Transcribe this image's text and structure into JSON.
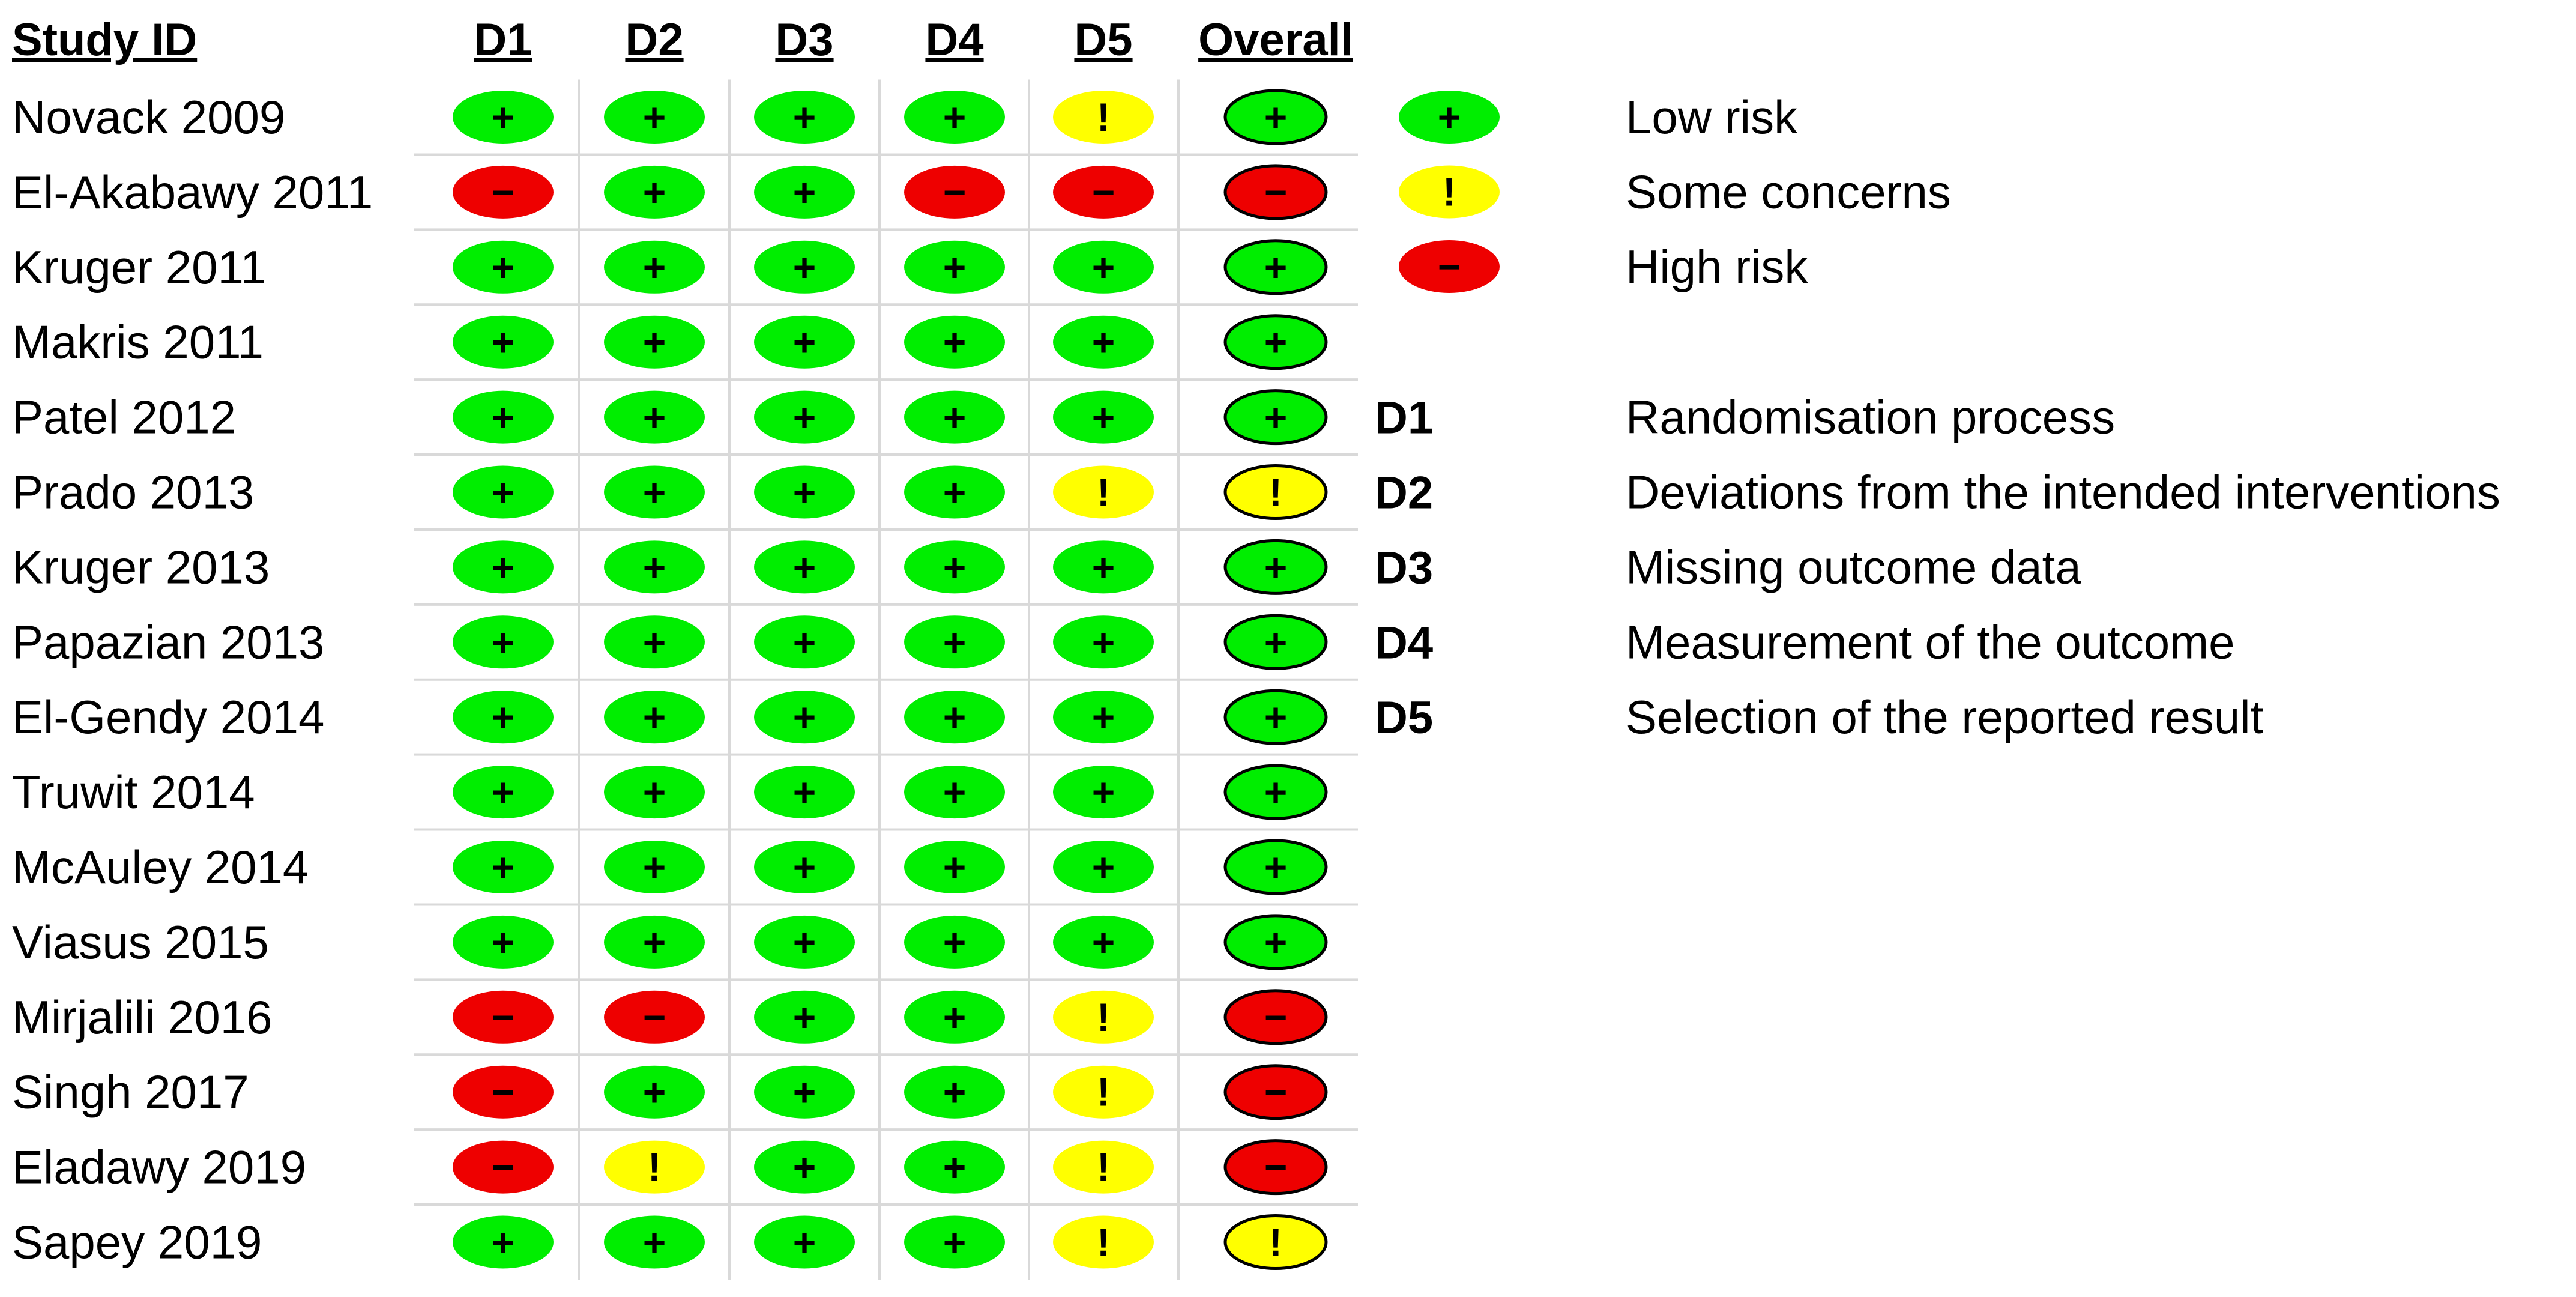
{
  "chart_data": {
    "type": "table",
    "columns": [
      "Study ID",
      "D1",
      "D2",
      "D3",
      "D4",
      "D5",
      "Overall"
    ],
    "rows": [
      {
        "study": "Novack 2009",
        "ratings": [
          "low",
          "low",
          "low",
          "low",
          "some",
          "low"
        ]
      },
      {
        "study": "El-Akabawy 2011",
        "ratings": [
          "high",
          "low",
          "low",
          "high",
          "high",
          "high"
        ]
      },
      {
        "study": "Kruger 2011",
        "ratings": [
          "low",
          "low",
          "low",
          "low",
          "low",
          "low"
        ]
      },
      {
        "study": "Makris 2011",
        "ratings": [
          "low",
          "low",
          "low",
          "low",
          "low",
          "low"
        ]
      },
      {
        "study": "Patel 2012",
        "ratings": [
          "low",
          "low",
          "low",
          "low",
          "low",
          "low"
        ]
      },
      {
        "study": "Prado 2013",
        "ratings": [
          "low",
          "low",
          "low",
          "low",
          "some",
          "some"
        ]
      },
      {
        "study": "Kruger 2013",
        "ratings": [
          "low",
          "low",
          "low",
          "low",
          "low",
          "low"
        ]
      },
      {
        "study": "Papazian 2013",
        "ratings": [
          "low",
          "low",
          "low",
          "low",
          "low",
          "low"
        ]
      },
      {
        "study": "El-Gendy 2014",
        "ratings": [
          "low",
          "low",
          "low",
          "low",
          "low",
          "low"
        ]
      },
      {
        "study": "Truwit 2014",
        "ratings": [
          "low",
          "low",
          "low",
          "low",
          "low",
          "low"
        ]
      },
      {
        "study": "McAuley 2014",
        "ratings": [
          "low",
          "low",
          "low",
          "low",
          "low",
          "low"
        ]
      },
      {
        "study": "Viasus 2015",
        "ratings": [
          "low",
          "low",
          "low",
          "low",
          "low",
          "low"
        ]
      },
      {
        "study": "Mirjalili 2016",
        "ratings": [
          "high",
          "high",
          "low",
          "low",
          "some",
          "high"
        ]
      },
      {
        "study": "Singh 2017",
        "ratings": [
          "high",
          "low",
          "low",
          "low",
          "some",
          "high"
        ]
      },
      {
        "study": "Eladawy 2019",
        "ratings": [
          "high",
          "some",
          "low",
          "low",
          "some",
          "high"
        ]
      },
      {
        "study": "Sapey 2019",
        "ratings": [
          "low",
          "low",
          "low",
          "low",
          "some",
          "some"
        ]
      }
    ],
    "legend": [
      {
        "key": "low",
        "symbol": "+",
        "label": "Low risk",
        "color": "#00ee00"
      },
      {
        "key": "some",
        "symbol": "!",
        "label": "Some concerns",
        "color": "#ffff00"
      },
      {
        "key": "high",
        "symbol": "−",
        "label": "High risk",
        "color": "#ee0000"
      }
    ],
    "domains": [
      {
        "code": "D1",
        "label": "Randomisation process"
      },
      {
        "code": "D2",
        "label": "Deviations from the intended interventions"
      },
      {
        "code": "D3",
        "label": "Missing outcome data"
      },
      {
        "code": "D4",
        "label": "Measurement of the outcome"
      },
      {
        "code": "D5",
        "label": "Selection of the reported result"
      }
    ]
  }
}
